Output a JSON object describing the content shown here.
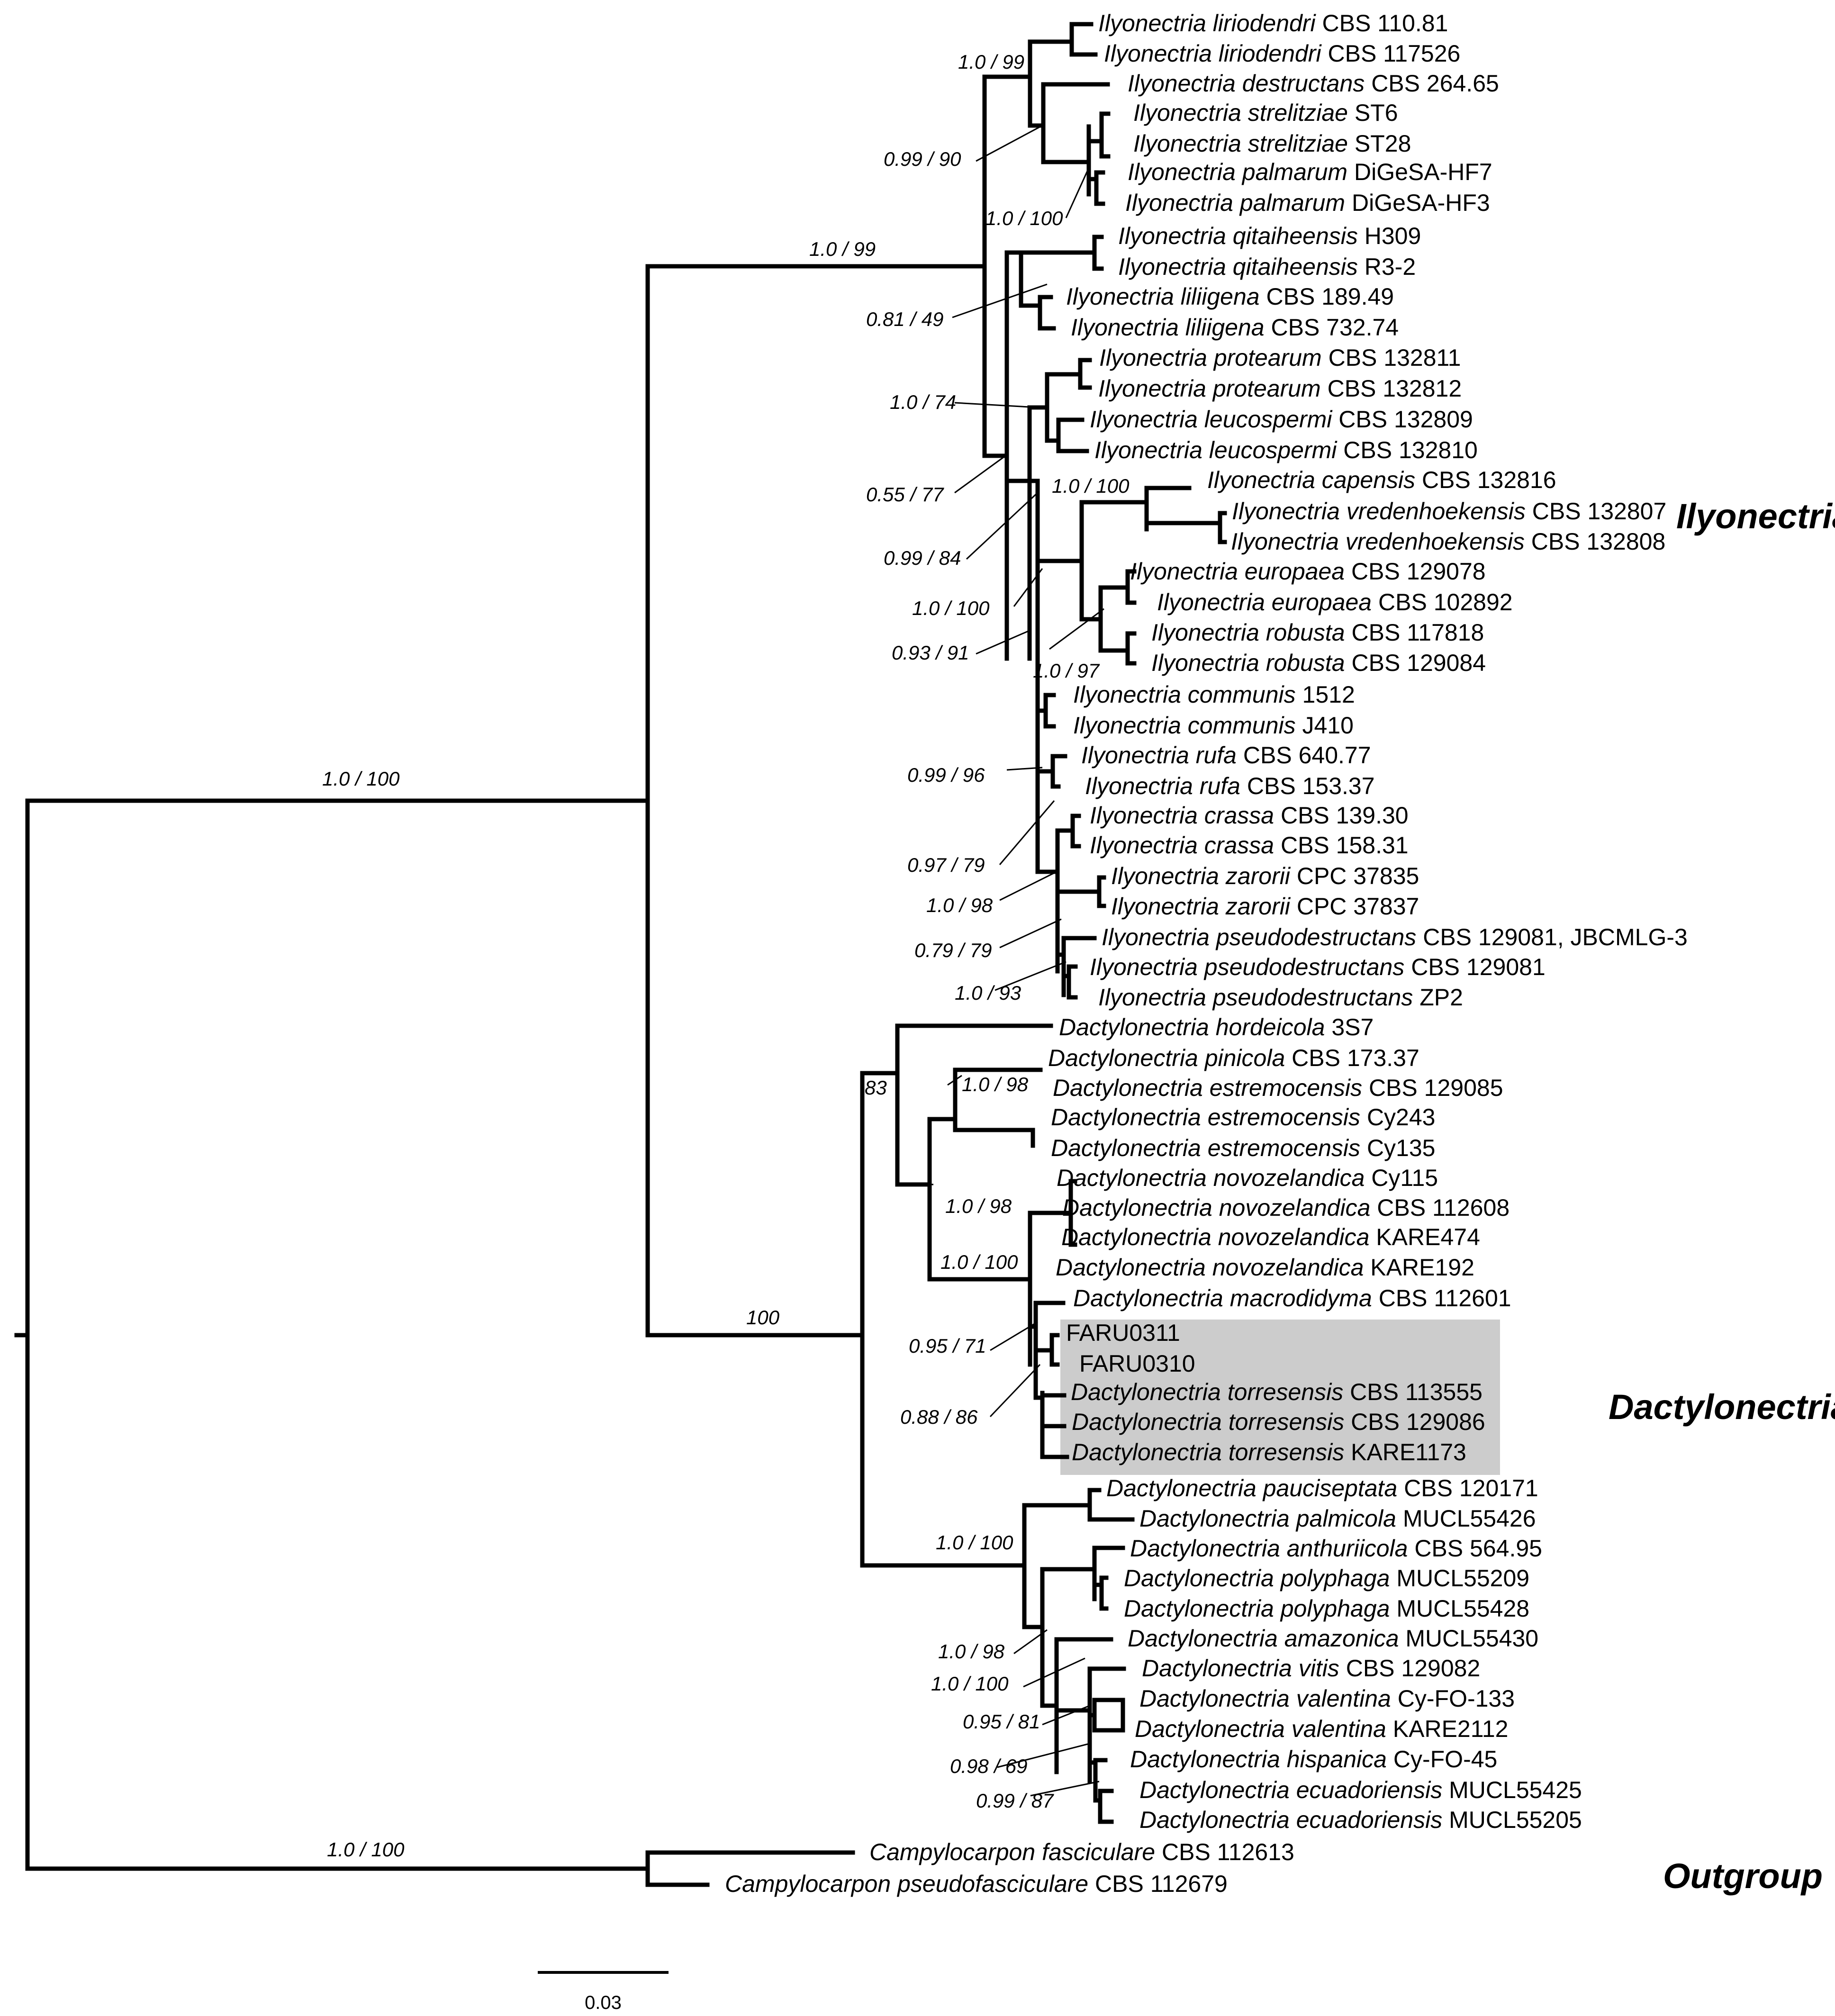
{
  "tree": {
    "tips": [
      {
        "genus": "Ilyonectria",
        "species": "liriodendri",
        "strain": "CBS 110.81"
      },
      {
        "genus": "Ilyonectria",
        "species": "liriodendri",
        "strain": "CBS 117526"
      },
      {
        "genus": "Ilyonectria",
        "species": "destructans",
        "strain": "CBS 264.65"
      },
      {
        "genus": "Ilyonectria",
        "species": "strelitziae",
        "strain": "ST6"
      },
      {
        "genus": "Ilyonectria",
        "species": "strelitziae",
        "strain": "ST28"
      },
      {
        "genus": "Ilyonectria",
        "species": "palmarum",
        "strain": "DiGeSA-HF7"
      },
      {
        "genus": "Ilyonectria",
        "species": "palmarum",
        "strain": "DiGeSA-HF3"
      },
      {
        "genus": "Ilyonectria",
        "species": "qitaiheensis",
        "strain": "H309"
      },
      {
        "genus": "Ilyonectria",
        "species": "qitaiheensis",
        "strain": "R3-2"
      },
      {
        "genus": "Ilyonectria",
        "species": "liliigena",
        "strain": "CBS 189.49"
      },
      {
        "genus": "Ilyonectria",
        "species": "liliigena",
        "strain": "CBS 732.74"
      },
      {
        "genus": "Ilyonectria",
        "species": "protearum",
        "strain": "CBS 132811"
      },
      {
        "genus": "Ilyonectria",
        "species": "protearum",
        "strain": "CBS 132812"
      },
      {
        "genus": "Ilyonectria",
        "species": "leucospermi",
        "strain": "CBS 132809"
      },
      {
        "genus": "Ilyonectria",
        "species": "leucospermi",
        "strain": "CBS 132810"
      },
      {
        "genus": "Ilyonectria",
        "species": "capensis",
        "strain": "CBS 132816"
      },
      {
        "genus": "Ilyonectria",
        "species": "vredenhoekensis",
        "strain": "CBS 132807"
      },
      {
        "genus": "Ilyonectria",
        "species": "vredenhoekensis",
        "strain": "CBS 132808"
      },
      {
        "genus": "Ilyonectria",
        "species": "europaea",
        "strain": "CBS 129078"
      },
      {
        "genus": "Ilyonectria",
        "species": "europaea",
        "strain": "CBS 102892"
      },
      {
        "genus": "Ilyonectria",
        "species": "robusta",
        "strain": "CBS 117818"
      },
      {
        "genus": "Ilyonectria",
        "species": "robusta",
        "strain": "CBS 129084"
      },
      {
        "genus": "Ilyonectria",
        "species": "communis",
        "strain": "1512"
      },
      {
        "genus": "Ilyonectria",
        "species": "communis",
        "strain": "J410"
      },
      {
        "genus": "Ilyonectria",
        "species": "rufa",
        "strain": "CBS 640.77"
      },
      {
        "genus": "Ilyonectria",
        "species": "rufa",
        "strain": "CBS 153.37"
      },
      {
        "genus": "Ilyonectria",
        "species": "crassa",
        "strain": "CBS 139.30"
      },
      {
        "genus": "Ilyonectria",
        "species": "crassa",
        "strain": "CBS 158.31"
      },
      {
        "genus": "Ilyonectria",
        "species": "zarorii",
        "strain": "CPC 37835"
      },
      {
        "genus": "Ilyonectria",
        "species": "zarorii",
        "strain": "CPC 37837"
      },
      {
        "genus": "Ilyonectria",
        "species": "pseudodestructans",
        "strain": "CBS 129081, JBCMLG-3"
      },
      {
        "genus": "Ilyonectria",
        "species": "pseudodestructans",
        "strain": "CBS 129081"
      },
      {
        "genus": "Ilyonectria",
        "species": "pseudodestructans",
        "strain": "ZP2"
      },
      {
        "genus": "Dactylonectria",
        "species": "hordeicola",
        "strain": "3S7"
      },
      {
        "genus": "Dactylonectria",
        "species": "pinicola",
        "strain": "CBS 173.37"
      },
      {
        "genus": "Dactylonectria",
        "species": "estremocensis",
        "strain": "CBS 129085"
      },
      {
        "genus": "Dactylonectria",
        "species": "estremocensis",
        "strain": "Cy243"
      },
      {
        "genus": "Dactylonectria",
        "species": "estremocensis",
        "strain": "Cy135"
      },
      {
        "genus": "Dactylonectria",
        "species": "novozelandica",
        "strain": "Cy115"
      },
      {
        "genus": "Dactylonectria",
        "species": "novozelandica",
        "strain": "CBS 112608"
      },
      {
        "genus": "Dactylonectria",
        "species": "novozelandica",
        "strain": "KARE474"
      },
      {
        "genus": "Dactylonectria",
        "species": "novozelandica",
        "strain": "KARE192"
      },
      {
        "genus": "Dactylonectria",
        "species": "macrodidyma",
        "strain": "CBS 112601"
      },
      {
        "genus": "",
        "species": "",
        "strain": "FARU0311"
      },
      {
        "genus": "",
        "species": "",
        "strain": "FARU0310"
      },
      {
        "genus": "Dactylonectria",
        "species": "torresensis",
        "strain": "CBS 113555"
      },
      {
        "genus": "Dactylonectria",
        "species": "torresensis",
        "strain": "CBS 129086"
      },
      {
        "genus": "Dactylonectria",
        "species": "torresensis",
        "strain": "KARE1173"
      },
      {
        "genus": "Dactylonectria",
        "species": "pauciseptata",
        "strain": "CBS 120171"
      },
      {
        "genus": "Dactylonectria",
        "species": "palmicola",
        "strain": "MUCL55426"
      },
      {
        "genus": "Dactylonectria",
        "species": "anthuriicola",
        "strain": "CBS 564.95"
      },
      {
        "genus": "Dactylonectria",
        "species": "polyphaga",
        "strain": "MUCL55209"
      },
      {
        "genus": "Dactylonectria",
        "species": "polyphaga",
        "strain": "MUCL55428"
      },
      {
        "genus": "Dactylonectria",
        "species": "amazonica",
        "strain": "MUCL55430"
      },
      {
        "genus": "Dactylonectria",
        "species": "vitis",
        "strain": "CBS 129082"
      },
      {
        "genus": "Dactylonectria",
        "species": "valentina",
        "strain": "Cy-FO-133"
      },
      {
        "genus": "Dactylonectria",
        "species": "valentina",
        "strain": "KARE2112"
      },
      {
        "genus": "Dactylonectria",
        "species": "hispanica",
        "strain": "Cy-FO-45"
      },
      {
        "genus": "Dactylonectria",
        "species": "ecuadoriensis",
        "strain": "MUCL55425"
      },
      {
        "genus": "Dactylonectria",
        "species": "ecuadoriensis",
        "strain": "MUCL55205"
      },
      {
        "genus": "Campylocarpon",
        "species": "fasciculare",
        "strain": "CBS 112613"
      },
      {
        "genus": "Campylocarpon",
        "species": "pseudofasciculare",
        "strain": "CBS 112679"
      }
    ],
    "supports": [
      "1.0 / 99",
      "0.99 / 90",
      "1.0 / 100",
      "1.0 / 99",
      "0.81 / 49",
      "1.0 / 74",
      "0.55 / 77",
      "1.0 / 100",
      "0.99 / 84",
      "1.0 / 100",
      "0.93 / 91",
      "1.0 / 97",
      "1.0 / 100",
      "0.99 / 96",
      "0.97 / 79",
      "1.0 / 98",
      "0.79 / 79",
      "1.0 / 93",
      "83",
      "1.0 / 98",
      "1.0 / 98",
      "1.0 / 100",
      "100",
      "0.95 / 71",
      "0.88 / 86",
      "1.0 / 100",
      "1.0 / 98",
      "1.0 / 100",
      "0.95 / 81",
      "0.98 / 69",
      "0.99 / 87",
      "1.0 / 100"
    ],
    "groups": [
      "Ilyonectria",
      "Dactylonectria",
      "Outgroup"
    ],
    "scale_bar": "0.03",
    "highlight_color": "#cccccc"
  }
}
